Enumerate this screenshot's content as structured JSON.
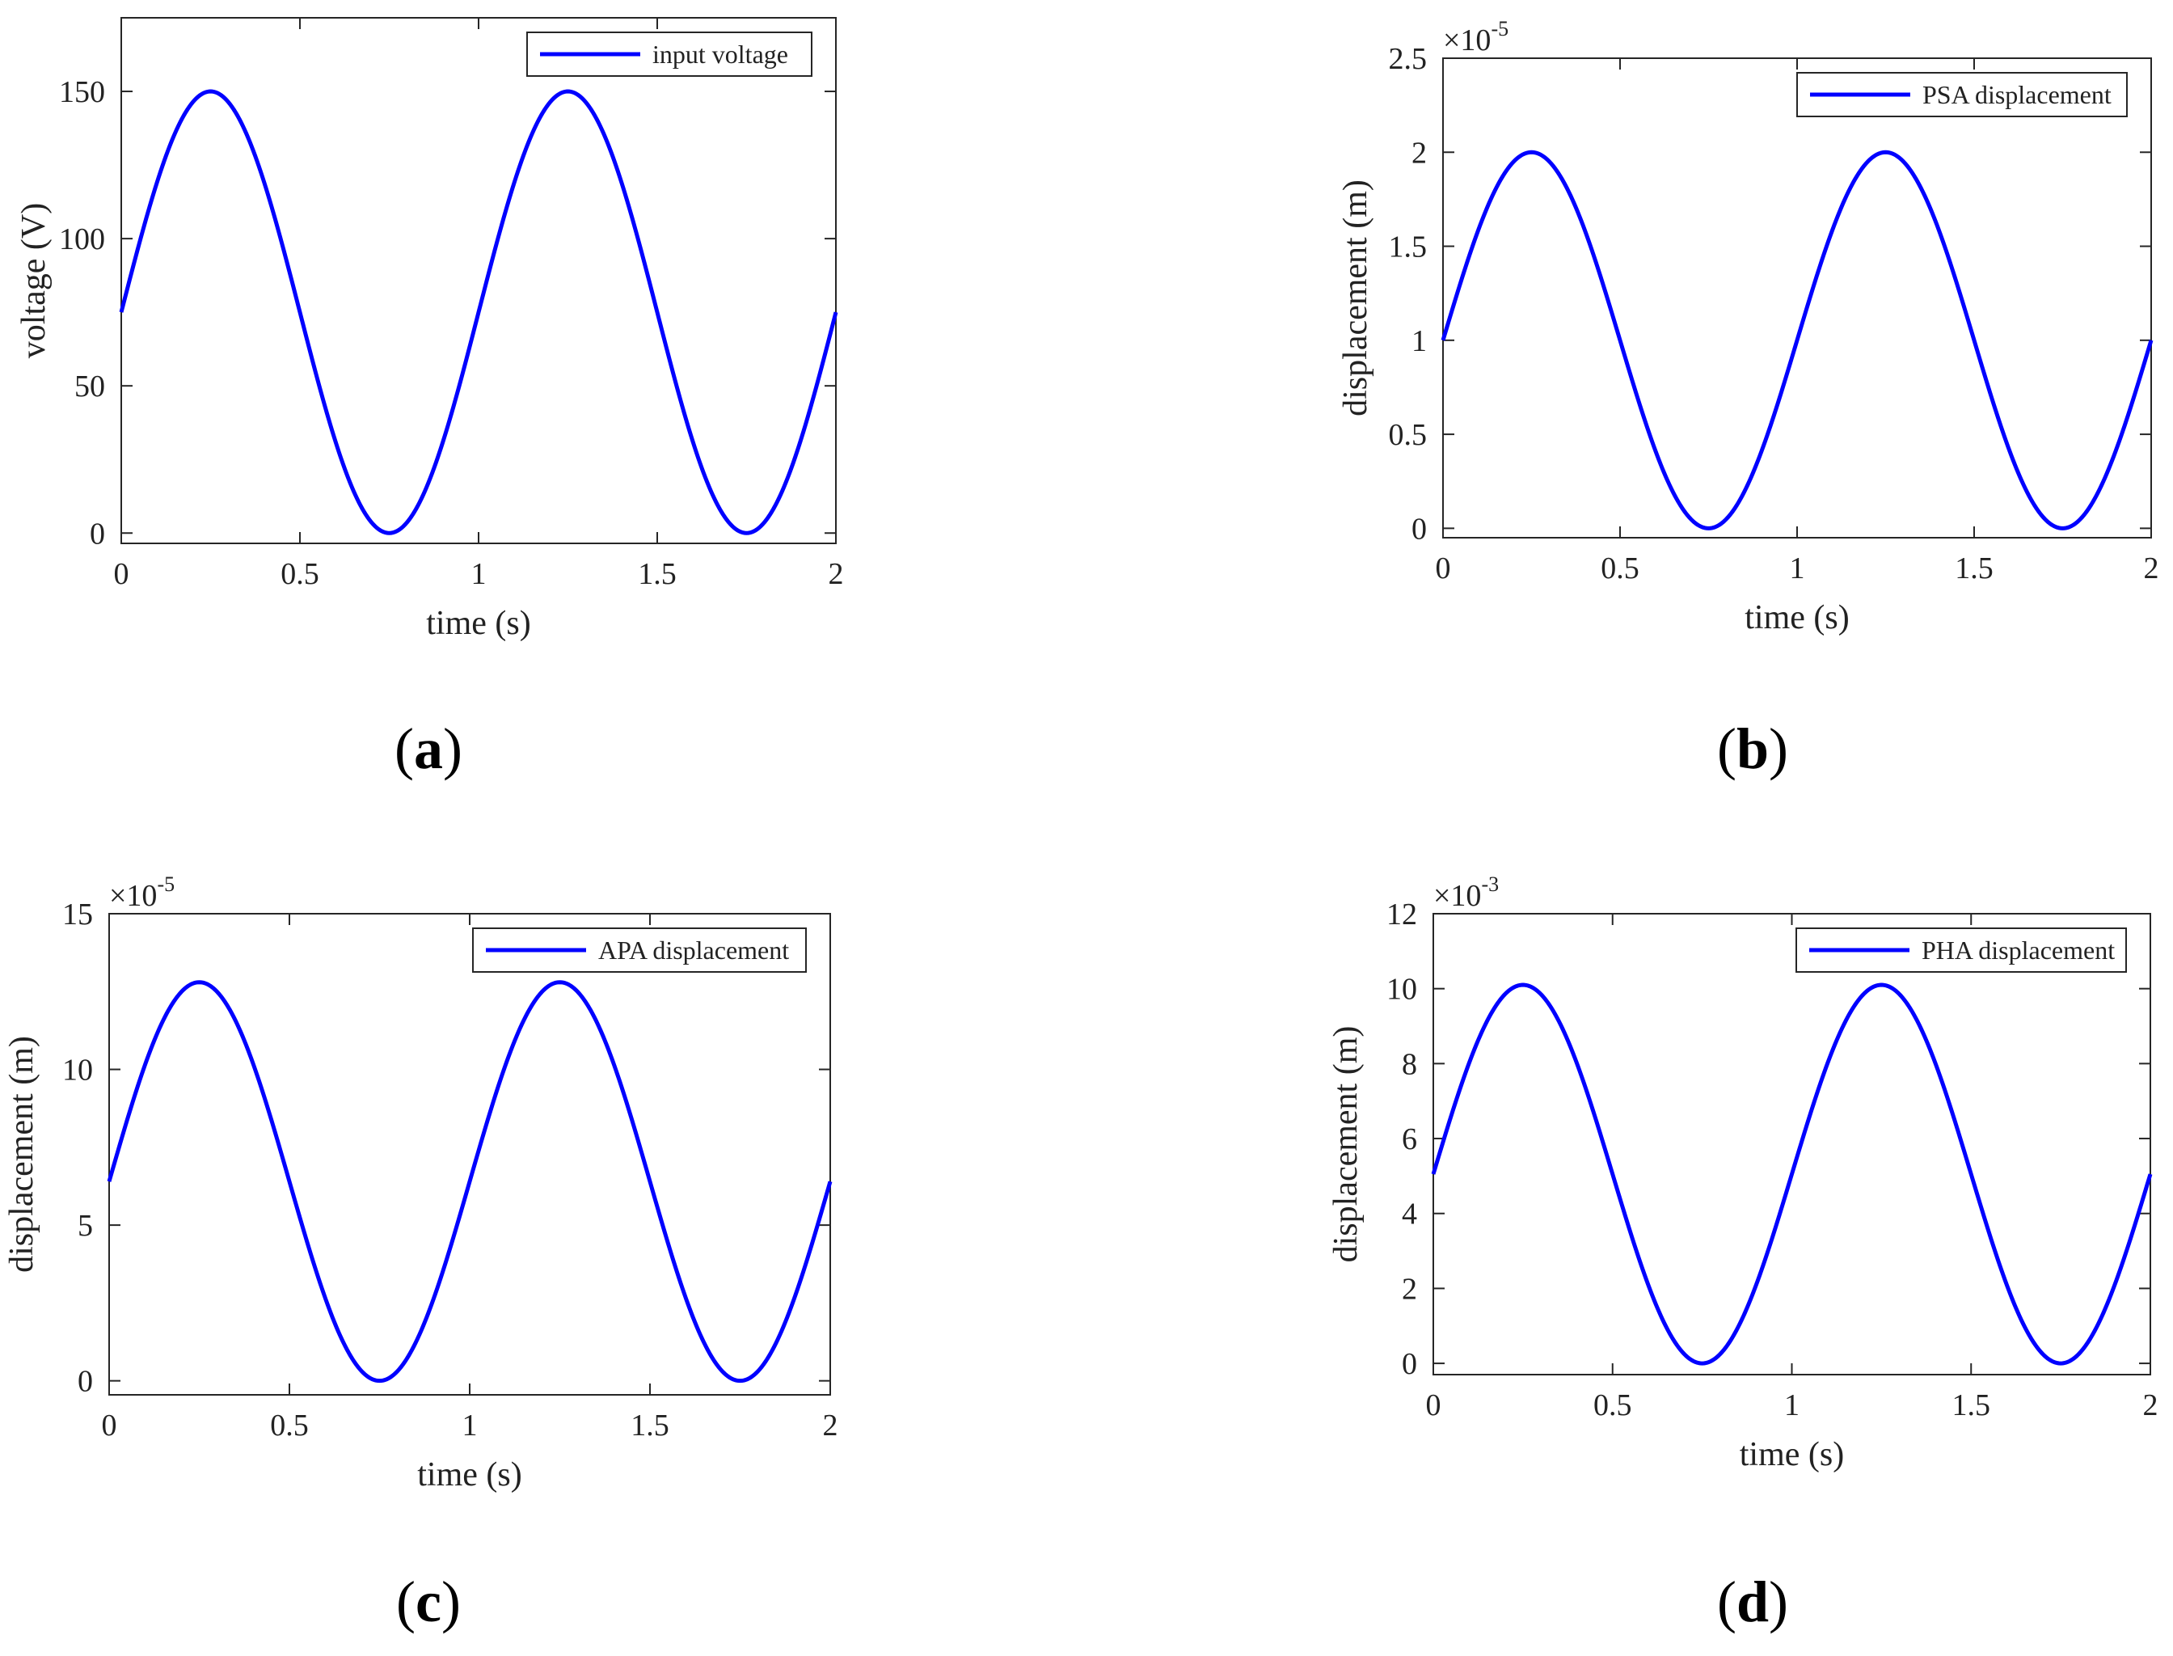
{
  "colors": {
    "series": "#0000ff",
    "axis": "#262626",
    "legend_border": "#262626",
    "background": "#ffffff"
  },
  "chart_data": [
    {
      "id": "a",
      "type": "line",
      "panel_label": "a",
      "xlabel": "time (s)",
      "ylabel": "voltage (V)",
      "exponent": "",
      "xlim": [
        0,
        2
      ],
      "ylim": [
        -3.5,
        175
      ],
      "xticks": [
        0,
        0.5,
        1,
        1.5,
        2
      ],
      "xtick_labels": [
        "0",
        "0.5",
        "1",
        "1.5",
        "2"
      ],
      "yticks": [
        0,
        50,
        100,
        150
      ],
      "ytick_labels": [
        "0",
        "50",
        "100",
        "150"
      ],
      "grid": false,
      "legend_position": "top-right",
      "series": [
        {
          "name": "input voltage",
          "function": "offset + amplitude*sin(2*pi*frequency*t)",
          "offset": 75,
          "amplitude": 75,
          "frequency": 1,
          "x_range": [
            0,
            2
          ]
        }
      ]
    },
    {
      "id": "b",
      "type": "line",
      "panel_label": "b",
      "xlabel": "time (s)",
      "ylabel": "displacement (m)",
      "exponent": "×10",
      "exponent_power": "-5",
      "xlim": [
        0,
        2
      ],
      "ylim": [
        -0.05,
        2.5
      ],
      "xticks": [
        0,
        0.5,
        1,
        1.5,
        2
      ],
      "xtick_labels": [
        "0",
        "0.5",
        "1",
        "1.5",
        "2"
      ],
      "yticks": [
        0,
        0.5,
        1,
        1.5,
        2,
        2.5
      ],
      "ytick_labels": [
        "0",
        "0.5",
        "1",
        "1.5",
        "2",
        "2.5"
      ],
      "grid": false,
      "legend_position": "top-right",
      "series": [
        {
          "name": "PSA displacement",
          "function": "offset + amplitude*sin(2*pi*frequency*t)",
          "offset": 1,
          "amplitude": 1,
          "frequency": 1,
          "x_range": [
            0,
            2
          ]
        }
      ]
    },
    {
      "id": "c",
      "type": "line",
      "panel_label": "c",
      "xlabel": "time (s)",
      "ylabel": "displacement (m)",
      "exponent": "×10",
      "exponent_power": "-5",
      "xlim": [
        0,
        2
      ],
      "ylim": [
        -0.45,
        15
      ],
      "xticks": [
        0,
        0.5,
        1,
        1.5,
        2
      ],
      "xtick_labels": [
        "0",
        "0.5",
        "1",
        "1.5",
        "2"
      ],
      "yticks": [
        0,
        5,
        10,
        15
      ],
      "ytick_labels": [
        "0",
        "5",
        "10",
        "15"
      ],
      "grid": false,
      "legend_position": "top-right",
      "series": [
        {
          "name": "APA displacement",
          "function": "offset + amplitude*sin(2*pi*frequency*t)",
          "offset": 6.4,
          "amplitude": 6.4,
          "frequency": 1,
          "x_range": [
            0,
            2
          ]
        }
      ]
    },
    {
      "id": "d",
      "type": "line",
      "panel_label": "d",
      "xlabel": "time (s)",
      "ylabel": "displacement (m)",
      "exponent": "×10",
      "exponent_power": "-3",
      "xlim": [
        0,
        2
      ],
      "ylim": [
        -0.3,
        12
      ],
      "xticks": [
        0,
        0.5,
        1,
        1.5,
        2
      ],
      "xtick_labels": [
        "0",
        "0.5",
        "1",
        "1.5",
        "2"
      ],
      "yticks": [
        0,
        2,
        4,
        6,
        8,
        10,
        12
      ],
      "ytick_labels": [
        "0",
        "2",
        "4",
        "6",
        "8",
        "10",
        "12"
      ],
      "grid": false,
      "legend_position": "top-right",
      "series": [
        {
          "name": "PHA displacement",
          "function": "offset + amplitude*sin(2*pi*frequency*t)",
          "offset": 5.05,
          "amplitude": 5.05,
          "frequency": 1,
          "x_range": [
            0,
            2
          ]
        }
      ]
    }
  ]
}
